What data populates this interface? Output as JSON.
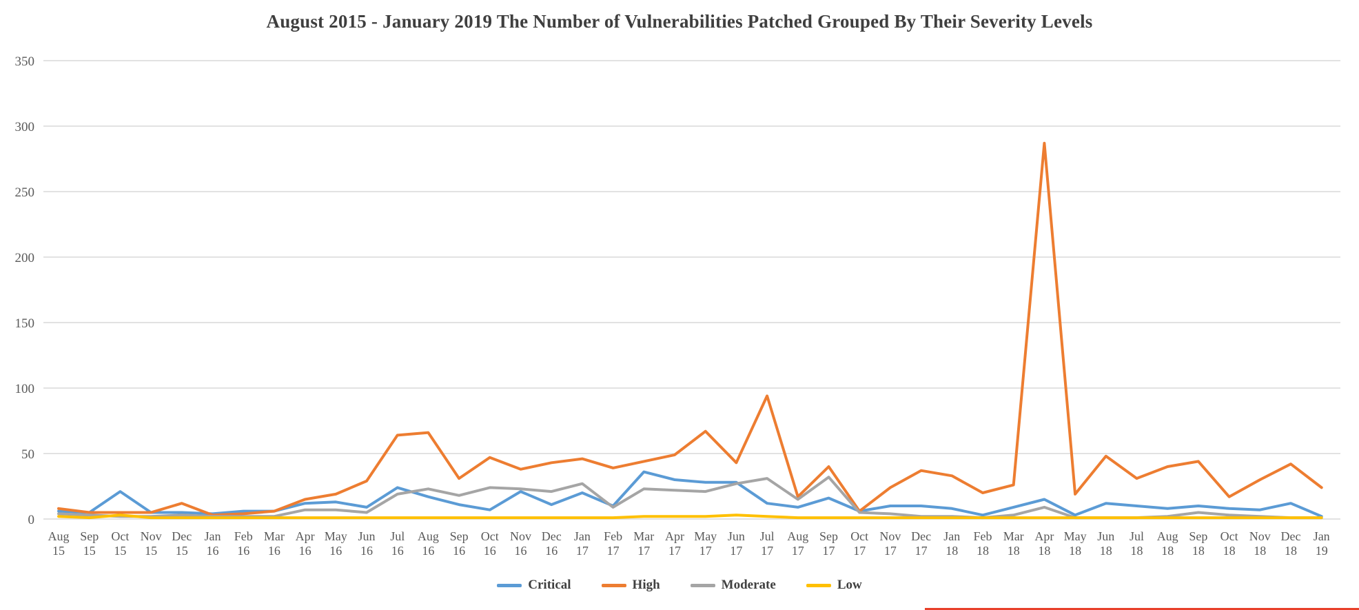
{
  "page_title": "August 2015 - January 2019 The Number of Vulnerabilities Patched Grouped By Their Severity Levels",
  "styles": {
    "background": "#ffffff",
    "title_color": "#3f3f3f",
    "grid_color": "#d9d9d9",
    "axis_text_color": "#595959",
    "legend_text_color": "#404040",
    "bottom_strip_color": "#e8402a"
  },
  "chart_data": {
    "type": "line",
    "title": "August 2015 - January 2019 The Number of Vulnerabilities Patched Grouped By Their Severity Levels",
    "xlabel": "",
    "ylabel": "",
    "ylim": [
      0,
      350
    ],
    "yticks": [
      0,
      50,
      100,
      150,
      200,
      250,
      300,
      350
    ],
    "grid": "horizontal",
    "legend_position": "bottom",
    "categories": [
      "Aug 15",
      "Sep 15",
      "Oct 15",
      "Nov 15",
      "Dec 15",
      "Jan 16",
      "Feb 16",
      "Mar 16",
      "Apr 16",
      "May 16",
      "Jun 16",
      "Jul 16",
      "Aug 16",
      "Sep 16",
      "Oct 16",
      "Nov 16",
      "Dec 16",
      "Jan 17",
      "Feb 17",
      "Mar 17",
      "Apr 17",
      "May 17",
      "Jun 17",
      "Jul 17",
      "Aug 17",
      "Sep 17",
      "Oct 17",
      "Nov 17",
      "Dec 17",
      "Jan 18",
      "Feb 18",
      "Mar 18",
      "Apr 18",
      "May 18",
      "Jun 18",
      "Jul 18",
      "Aug 18",
      "Sep 18",
      "Oct 18",
      "Nov 18",
      "Dec 18",
      "Jan 19"
    ],
    "series": [
      {
        "name": "Critical",
        "color": "#5B9BD5",
        "values": [
          6,
          5,
          21,
          5,
          5,
          4,
          6,
          6,
          12,
          13,
          9,
          24,
          17,
          11,
          7,
          21,
          11,
          20,
          10,
          36,
          30,
          28,
          28,
          12,
          9,
          16,
          6,
          10,
          10,
          8,
          3,
          9,
          15,
          3,
          12,
          10,
          8,
          10,
          8,
          7,
          12,
          2
        ]
      },
      {
        "name": "High",
        "color": "#ED7D31",
        "values": [
          8,
          5,
          5,
          5,
          12,
          3,
          4,
          6,
          15,
          19,
          29,
          64,
          66,
          31,
          47,
          38,
          43,
          46,
          39,
          44,
          49,
          67,
          43,
          94,
          17,
          40,
          6,
          24,
          37,
          33,
          20,
          26,
          287,
          19,
          48,
          31,
          40,
          44,
          17,
          30,
          42,
          24
        ]
      },
      {
        "name": "Moderate",
        "color": "#A5A5A5",
        "values": [
          4,
          3,
          2,
          2,
          3,
          2,
          2,
          2,
          7,
          7,
          5,
          19,
          23,
          18,
          24,
          23,
          21,
          27,
          9,
          23,
          22,
          21,
          27,
          31,
          15,
          32,
          5,
          4,
          2,
          2,
          1,
          3,
          9,
          1,
          1,
          1,
          2,
          5,
          3,
          2,
          1,
          1
        ]
      },
      {
        "name": "Low",
        "color": "#FFC000",
        "values": [
          2,
          1,
          3,
          1,
          1,
          1,
          1,
          1,
          1,
          1,
          1,
          1,
          1,
          1,
          1,
          1,
          1,
          1,
          1,
          2,
          2,
          2,
          3,
          2,
          1,
          1,
          1,
          1,
          1,
          1,
          1,
          1,
          1,
          1,
          1,
          1,
          1,
          1,
          1,
          1,
          1,
          1
        ]
      }
    ]
  }
}
